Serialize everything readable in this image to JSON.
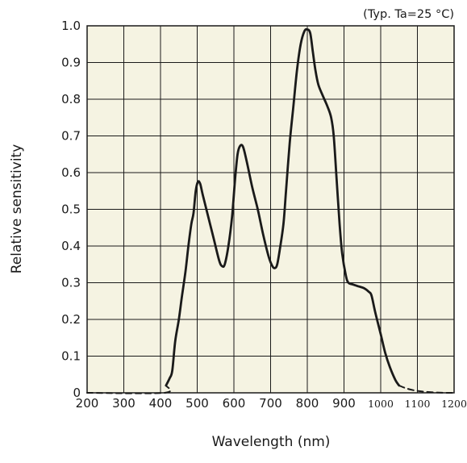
{
  "chart_data": {
    "type": "line",
    "annotation": "(Typ. Ta=25 °C)",
    "xlabel": "Wavelength (nm)",
    "ylabel": "Relative sensitivity",
    "xlim": [
      200,
      1200
    ],
    "ylim": [
      0,
      1.0
    ],
    "grid": true,
    "x_ticks": [
      {
        "value": 200,
        "label": "200"
      },
      {
        "value": 300,
        "label": "300"
      },
      {
        "value": 400,
        "label": "400"
      },
      {
        "value": 500,
        "label": "500"
      },
      {
        "value": 600,
        "label": "600"
      },
      {
        "value": 700,
        "label": "700"
      },
      {
        "value": 800,
        "label": "800"
      },
      {
        "value": 900,
        "label": "900"
      },
      {
        "value": 1000,
        "label": "1000"
      },
      {
        "value": 1100,
        "label": "1100"
      },
      {
        "value": 1200,
        "label": "1200"
      }
    ],
    "y_ticks": [
      {
        "value": 0,
        "label": "0"
      },
      {
        "value": 0.1,
        "label": "0.1"
      },
      {
        "value": 0.2,
        "label": "0.2"
      },
      {
        "value": 0.3,
        "label": "0.3"
      },
      {
        "value": 0.4,
        "label": "0.4"
      },
      {
        "value": 0.5,
        "label": "0.5"
      },
      {
        "value": 0.6,
        "label": "0.6"
      },
      {
        "value": 0.7,
        "label": "0.7"
      },
      {
        "value": 0.8,
        "label": "0.8"
      },
      {
        "value": 0.9,
        "label": "0.9"
      },
      {
        "value": 1.0,
        "label": "1.0"
      }
    ],
    "series": [
      {
        "style": "solid",
        "color": "#1a1a1a",
        "points": [
          [
            415,
            0.02
          ],
          [
            425,
            0.04
          ],
          [
            432,
            0.06
          ],
          [
            440,
            0.14
          ],
          [
            450,
            0.2
          ],
          [
            458,
            0.26
          ],
          [
            468,
            0.33
          ],
          [
            476,
            0.4
          ],
          [
            484,
            0.46
          ],
          [
            490,
            0.49
          ],
          [
            496,
            0.55
          ],
          [
            502,
            0.575
          ],
          [
            508,
            0.57
          ],
          [
            515,
            0.54
          ],
          [
            530,
            0.48
          ],
          [
            545,
            0.42
          ],
          [
            560,
            0.36
          ],
          [
            568,
            0.345
          ],
          [
            575,
            0.35
          ],
          [
            585,
            0.4
          ],
          [
            595,
            0.48
          ],
          [
            603,
            0.58
          ],
          [
            610,
            0.65
          ],
          [
            617,
            0.673
          ],
          [
            625,
            0.67
          ],
          [
            635,
            0.63
          ],
          [
            650,
            0.56
          ],
          [
            665,
            0.5
          ],
          [
            680,
            0.43
          ],
          [
            695,
            0.37
          ],
          [
            705,
            0.345
          ],
          [
            712,
            0.34
          ],
          [
            718,
            0.35
          ],
          [
            725,
            0.39
          ],
          [
            735,
            0.46
          ],
          [
            742,
            0.55
          ],
          [
            752,
            0.68
          ],
          [
            762,
            0.78
          ],
          [
            772,
            0.88
          ],
          [
            782,
            0.95
          ],
          [
            792,
            0.985
          ],
          [
            800,
            0.99
          ],
          [
            808,
            0.98
          ],
          [
            815,
            0.93
          ],
          [
            822,
            0.88
          ],
          [
            830,
            0.84
          ],
          [
            842,
            0.81
          ],
          [
            855,
            0.78
          ],
          [
            865,
            0.75
          ],
          [
            872,
            0.7
          ],
          [
            880,
            0.58
          ],
          [
            888,
            0.46
          ],
          [
            895,
            0.38
          ],
          [
            905,
            0.32
          ],
          [
            912,
            0.3
          ],
          [
            925,
            0.295
          ],
          [
            940,
            0.29
          ],
          [
            955,
            0.285
          ],
          [
            968,
            0.275
          ],
          [
            975,
            0.265
          ],
          [
            985,
            0.22
          ],
          [
            1000,
            0.16
          ],
          [
            1012,
            0.11
          ],
          [
            1025,
            0.07
          ],
          [
            1040,
            0.035
          ],
          [
            1050,
            0.02
          ]
        ]
      },
      {
        "style": "dashed",
        "color": "#1a1a1a",
        "points": [
          [
            200,
            0.0
          ],
          [
            410,
            0.0
          ],
          [
            415,
            0.02
          ]
        ]
      },
      {
        "style": "dashed",
        "color": "#1a1a1a",
        "points": [
          [
            1050,
            0.02
          ],
          [
            1070,
            0.012
          ],
          [
            1095,
            0.006
          ],
          [
            1120,
            0.003
          ],
          [
            1150,
            0.001
          ],
          [
            1180,
            0.0
          ],
          [
            1200,
            0.0
          ]
        ]
      }
    ]
  }
}
